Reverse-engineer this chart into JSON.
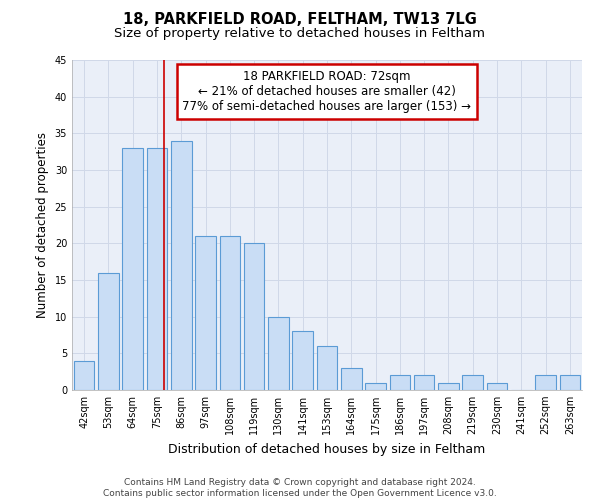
{
  "title_line1": "18, PARKFIELD ROAD, FELTHAM, TW13 7LG",
  "title_line2": "Size of property relative to detached houses in Feltham",
  "xlabel": "Distribution of detached houses by size in Feltham",
  "ylabel": "Number of detached properties",
  "categories": [
    "42sqm",
    "53sqm",
    "64sqm",
    "75sqm",
    "86sqm",
    "97sqm",
    "108sqm",
    "119sqm",
    "130sqm",
    "141sqm",
    "153sqm",
    "164sqm",
    "175sqm",
    "186sqm",
    "197sqm",
    "208sqm",
    "219sqm",
    "230sqm",
    "241sqm",
    "252sqm",
    "263sqm"
  ],
  "values": [
    4,
    16,
    33,
    33,
    34,
    21,
    21,
    20,
    10,
    8,
    6,
    3,
    1,
    2,
    2,
    1,
    2,
    1,
    0,
    2,
    2
  ],
  "bar_color": "#c9ddf5",
  "bar_edge_color": "#5b9bd5",
  "red_line_x": 3.3,
  "annotation_text_line1": "18 PARKFIELD ROAD: 72sqm",
  "annotation_text_line2": "← 21% of detached houses are smaller (42)",
  "annotation_text_line3": "77% of semi-detached houses are larger (153) →",
  "annotation_box_color": "#ffffff",
  "annotation_box_edge_color": "#cc0000",
  "red_line_color": "#cc0000",
  "grid_color": "#d0d8e8",
  "background_color": "#eaeff8",
  "ylim": [
    0,
    45
  ],
  "yticks": [
    0,
    5,
    10,
    15,
    20,
    25,
    30,
    35,
    40,
    45
  ],
  "footnote": "Contains HM Land Registry data © Crown copyright and database right 2024.\nContains public sector information licensed under the Open Government Licence v3.0.",
  "title_fontsize": 10.5,
  "subtitle_fontsize": 9.5,
  "tick_fontsize": 7,
  "ylabel_fontsize": 8.5,
  "xlabel_fontsize": 9,
  "footnote_fontsize": 6.5,
  "bar_width": 0.85
}
